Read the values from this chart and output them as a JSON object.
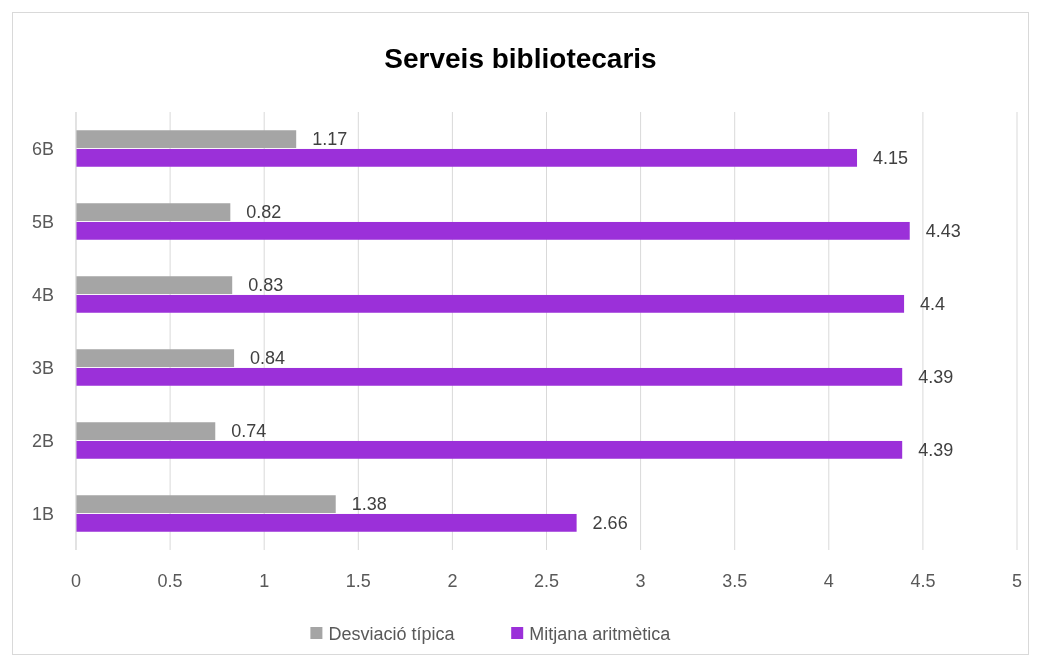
{
  "chart_data": {
    "type": "bar",
    "orientation": "horizontal",
    "title": "Serveis bibliotecaris",
    "categories": [
      "6B",
      "5B",
      "4B",
      "3B",
      "2B",
      "1B"
    ],
    "series": [
      {
        "name": "Desviació típica",
        "color": "#a5a5a5",
        "values": [
          1.17,
          0.82,
          0.83,
          0.84,
          0.74,
          1.38
        ]
      },
      {
        "name": "Mitjana aritmètica",
        "color": "#9b30d9",
        "values": [
          4.15,
          4.43,
          4.4,
          4.39,
          4.39,
          2.66
        ]
      }
    ],
    "xlim": [
      0,
      5
    ],
    "xticks": [
      0,
      0.5,
      1,
      1.5,
      2,
      2.5,
      3,
      3.5,
      4,
      4.5,
      5
    ],
    "grid": "x",
    "legend": "bottom",
    "data_labels": true
  }
}
